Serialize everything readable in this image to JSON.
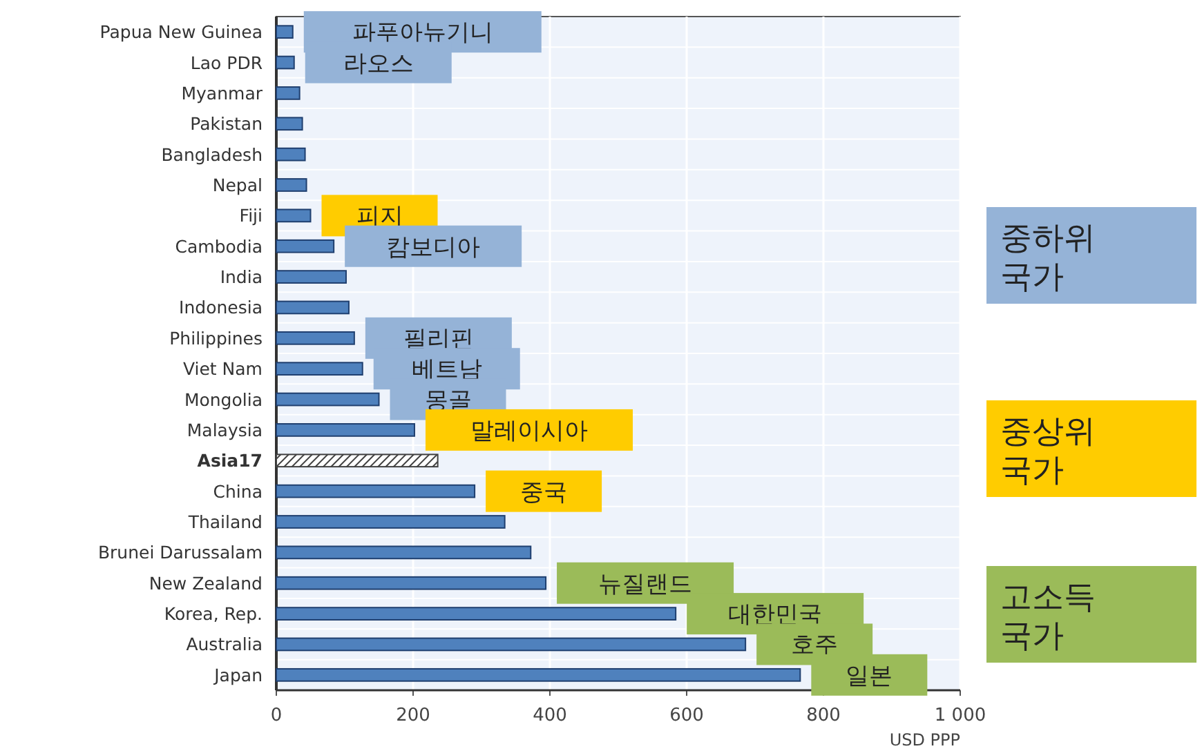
{
  "chart_data": {
    "type": "bar",
    "orientation": "horizontal",
    "xlabel": "USD PPP",
    "categories": [
      "Papua New Guinea",
      "Lao PDR",
      "Myanmar",
      "Pakistan",
      "Bangladesh",
      "Nepal",
      "Fiji",
      "Cambodia",
      "India",
      "Indonesia",
      "Philippines",
      "Viet Nam",
      "Mongolia",
      "Malaysia",
      "**Asia17**",
      "China",
      "Thailand",
      "Brunei Darussalam",
      "New Zealand",
      "Korea, Rep.",
      "Australia",
      "Japan"
    ],
    "values": [
      24,
      26,
      34,
      38,
      42,
      44,
      50,
      84,
      102,
      106,
      114,
      126,
      150,
      202,
      236,
      290,
      334,
      372,
      394,
      584,
      686,
      766
    ],
    "color": "#4f81bd",
    "colors": [
      "#4f81bd",
      "#4f81bd",
      "#4f81bd",
      "#4f81bd",
      "#4f81bd",
      "#4f81bd",
      "#4f81bd",
      "#4f81bd",
      "#4f81bd",
      "#4f81bd",
      "#4f81bd",
      "#4f81bd",
      "#4f81bd",
      "#4f81bd",
      "#404040",
      "#4f81bd",
      "#4f81bd",
      "#4f81bd",
      "#4f81bd",
      "#4f81bd",
      "#4f81bd",
      "#4f81bd"
    ],
    "xlim": [
      0,
      1000
    ],
    "xticks": [
      0,
      200,
      400,
      600,
      800,
      {
        "value": 1000,
        "label": "1 000"
      }
    ],
    "grid": "x",
    "annotations": [
      {
        "text": "파푸아뉴기니",
        "x": 24,
        "y": "Papua New Guinea"
      },
      {
        "text": "라오스",
        "x": 26,
        "y": "Lao PDR"
      },
      {
        "text": "피지",
        "x": 50,
        "y": "Fiji"
      },
      {
        "text": "캄보디아",
        "x": 84,
        "y": "Cambodia"
      },
      {
        "text": "필리핀",
        "x": 114,
        "y": "Philippines"
      },
      {
        "text": "베트남",
        "x": 126,
        "y": "Viet Nam"
      },
      {
        "text": "몽골",
        "x": 150,
        "y": "Mongolia"
      },
      {
        "text": "말레이시아",
        "x": 202,
        "y": "Malaysia"
      },
      {
        "text": "중국",
        "x": 290,
        "y": "China"
      },
      {
        "text": "뉴질랜드",
        "x": 394,
        "y": "New Zealand"
      },
      {
        "text": "대한민국",
        "x": 584,
        "y": "Korea, Rep."
      },
      {
        "text": "호주",
        "x": 686,
        "y": "Australia"
      },
      {
        "text": "일본",
        "x": 766,
        "y": "Japan"
      },
      "중하위 국가",
      "중상위 국가",
      "고소득 국가"
    ]
  }
}
